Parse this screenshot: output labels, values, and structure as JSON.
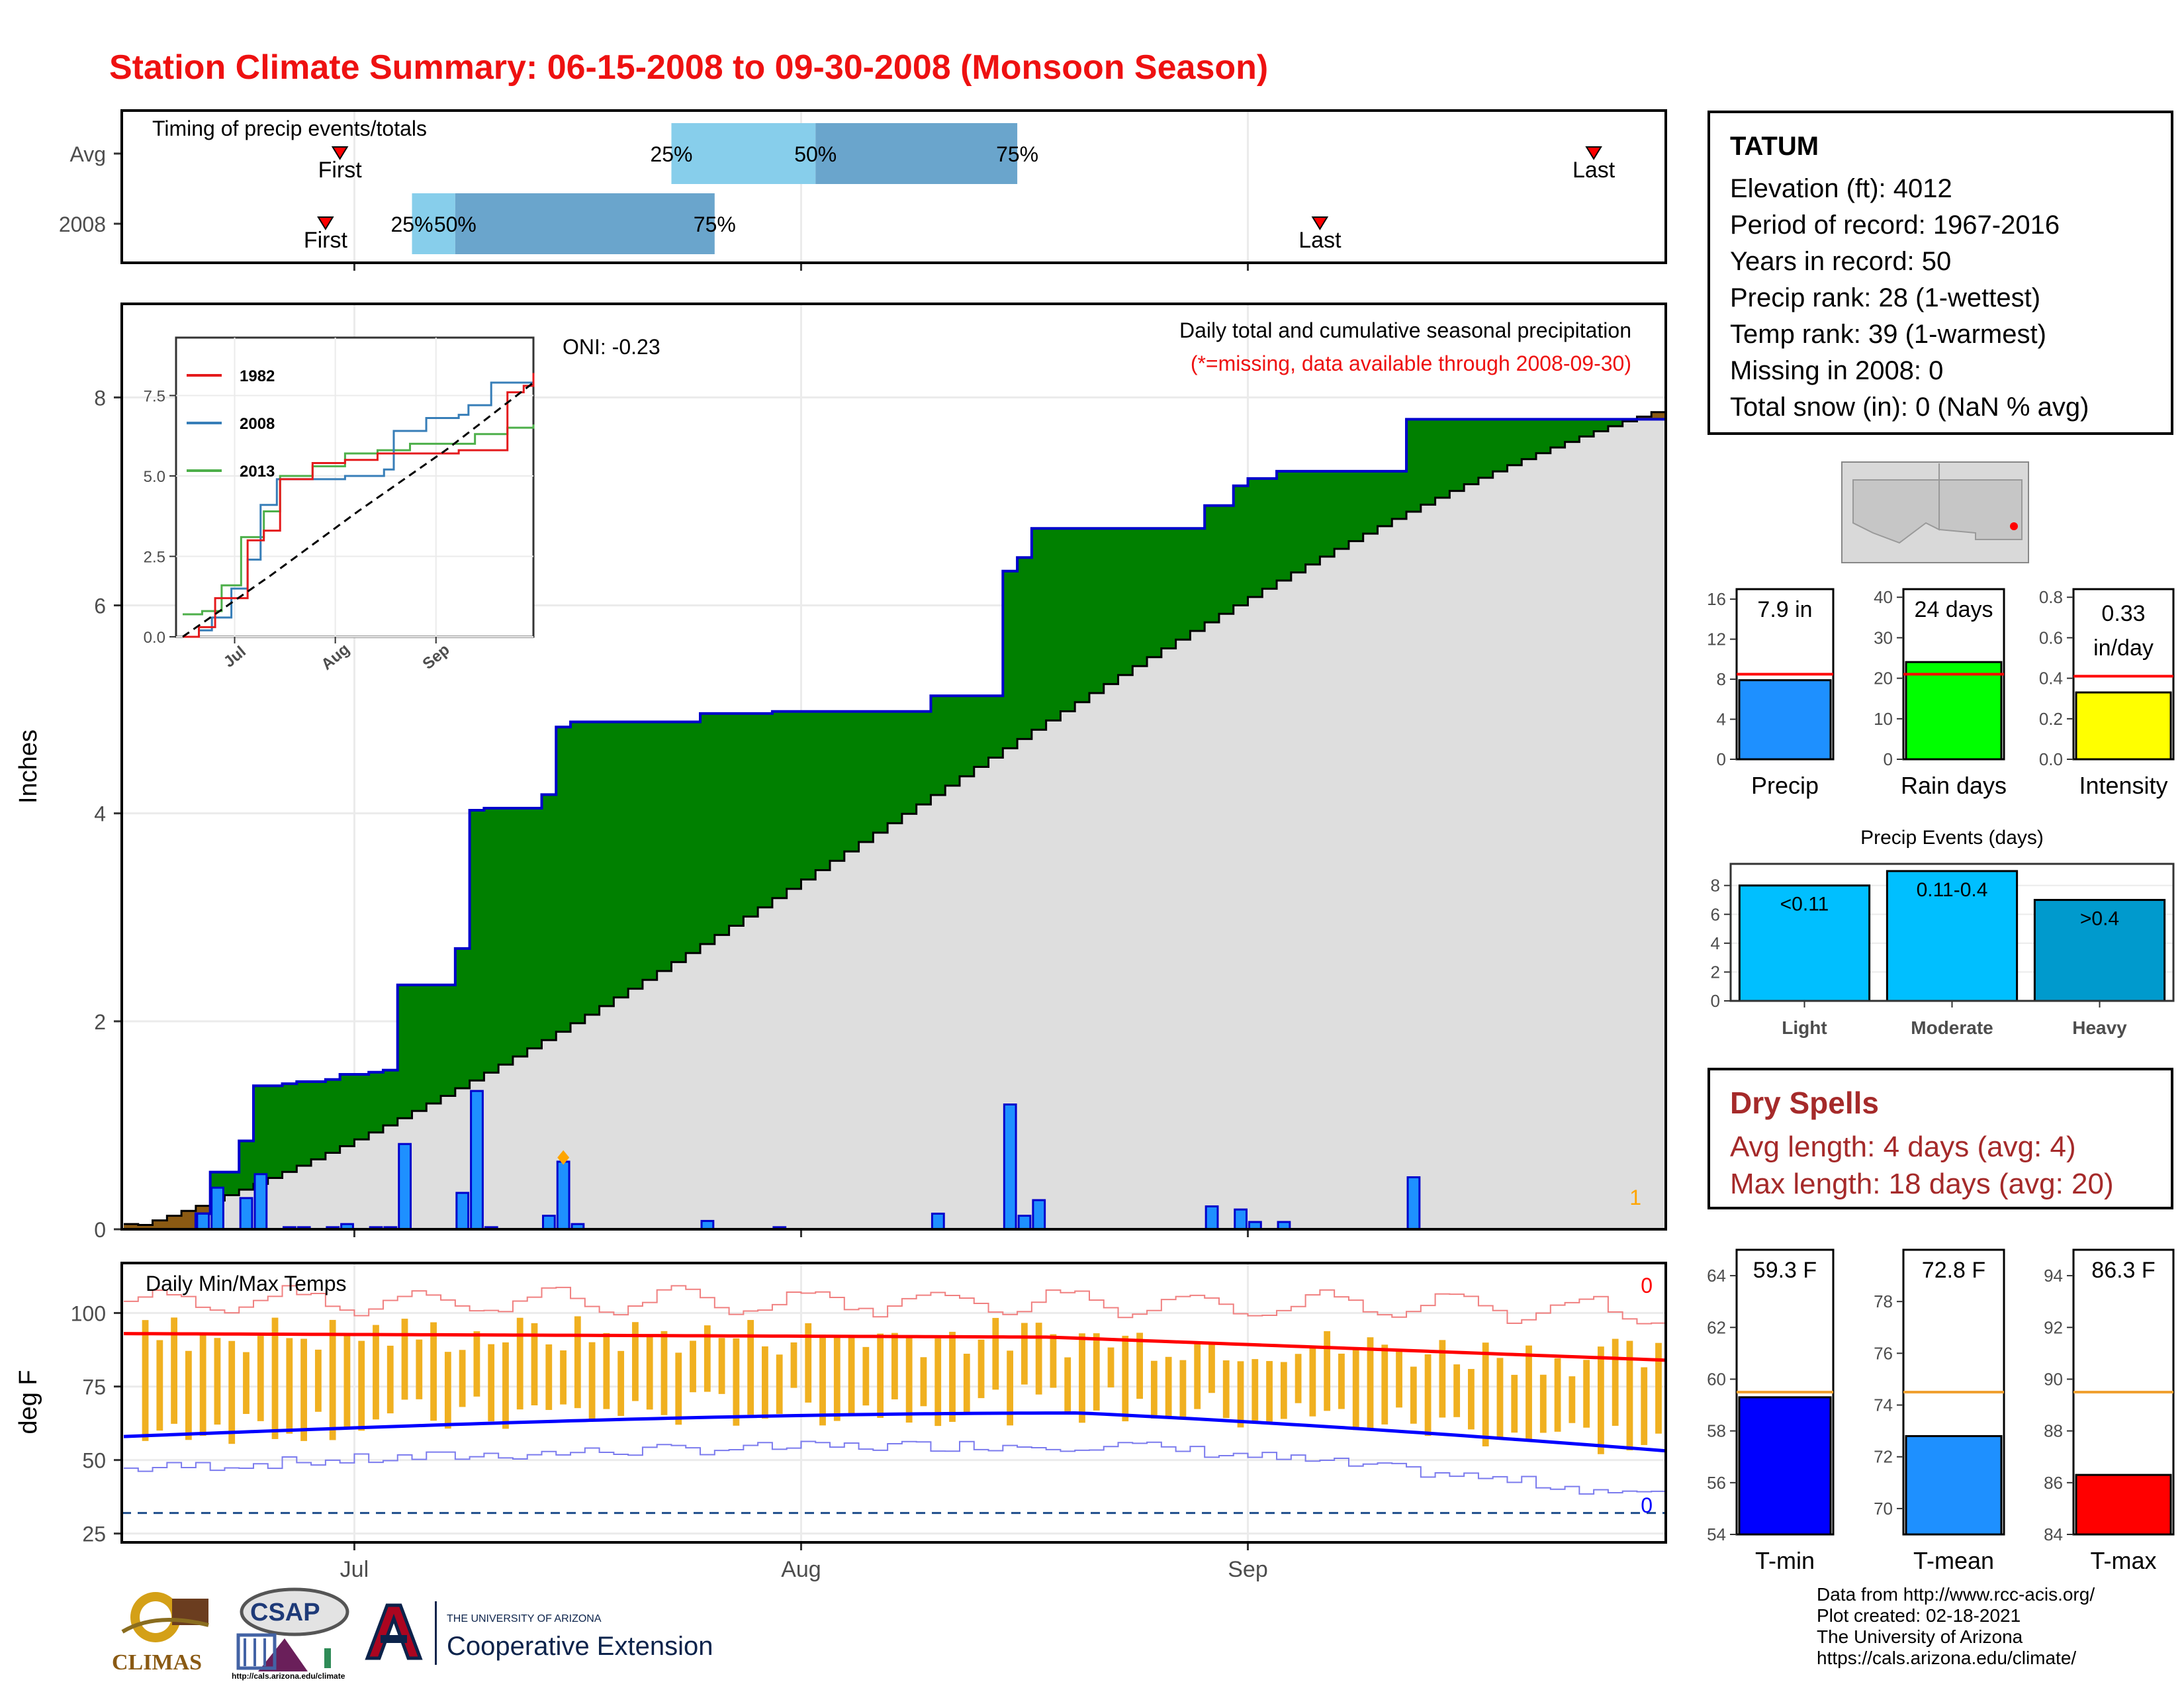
{
  "title": "Station Climate Summary: 06-15-2008 to 09-30-2008 (Monsoon Season)",
  "timing": {
    "title": "Timing of precip events/totals",
    "rows": [
      {
        "label": "Avg",
        "first": "2008-06-30",
        "q25": "2008-07-23",
        "q50": "2008-08-02",
        "q75": "2008-08-16",
        "last": "2008-09-25"
      },
      {
        "label": "2008",
        "first": "2008-06-29",
        "q25": "2008-07-05",
        "q50": "2008-07-08",
        "q75": "2008-07-26",
        "last": "2008-09-06"
      }
    ],
    "first_label": "First",
    "last_label": "Last",
    "q25_label": "25%",
    "q50_label": "50%",
    "q75_label": "75%"
  },
  "station": {
    "name": "TATUM",
    "lines": [
      "Elevation (ft): 4012",
      "Period of record: 1967-2016",
      "Years in record: 50",
      "Precip rank: 28 (1-wettest)",
      "Temp rank: 39 (1-warmest)",
      "Missing in 2008: 0",
      "Total snow (in): 0 (NaN % avg)"
    ]
  },
  "dry_spells": {
    "title": "Dry Spells",
    "lines": [
      "Avg length: 4 days (avg: 4)",
      "Max length: 18 days (avg: 20)"
    ]
  },
  "credits": [
    "Data from http://www.rcc-acis.org/",
    "Plot created: 02-18-2021",
    "The University of Arizona",
    "https://cals.arizona.edu/climate/"
  ],
  "logos": {
    "climas": "CLIMAS",
    "csap": "CSAP",
    "csap_url": "http://cals.arizona.edu/climate",
    "ua_line1": "THE UNIVERSITY OF ARIZONA",
    "ua_line2": "Cooperative Extension"
  },
  "colors": {
    "title": "#ee1111",
    "green_fill": "#008000",
    "brown_fill": "#8b5a13",
    "gray_fill": "#dedede",
    "precip_bar": "#1e90ff",
    "tmax": "#ff0000",
    "tmin": "#0000ff",
    "temp_bar": "#f0b020",
    "avg_line": "#ff0000",
    "light_q": "#87ceeb",
    "dark_q": "#6aa5cc"
  },
  "chart_data": [
    {
      "id": "precip",
      "type": "area",
      "title": "Daily total and cumulative seasonal precipitation",
      "subtitle": "(*=missing, data available through 2008-09-30)",
      "annotation": "ONI: -0.23",
      "corner_note": "1",
      "ylabel": "Inches",
      "ylim": [
        0,
        8.9
      ],
      "yticks": [
        0,
        2,
        4,
        6,
        8
      ],
      "xlim": [
        "2008-06-15",
        "2008-09-30"
      ],
      "xticks": [
        "Jul",
        "Aug",
        "Sep"
      ],
      "daily_precip": [
        {
          "date": "2008-06-20",
          "value": 0.15
        },
        {
          "date": "2008-06-21",
          "value": 0.4
        },
        {
          "date": "2008-06-23",
          "value": 0.3
        },
        {
          "date": "2008-06-24",
          "value": 0.53
        },
        {
          "date": "2008-06-26",
          "value": 0.02
        },
        {
          "date": "2008-06-27",
          "value": 0.02
        },
        {
          "date": "2008-06-29",
          "value": 0.02
        },
        {
          "date": "2008-06-30",
          "value": 0.05
        },
        {
          "date": "2008-07-02",
          "value": 0.02
        },
        {
          "date": "2008-07-03",
          "value": 0.02
        },
        {
          "date": "2008-07-04",
          "value": 0.82
        },
        {
          "date": "2008-07-08",
          "value": 0.35
        },
        {
          "date": "2008-07-09",
          "value": 1.33
        },
        {
          "date": "2008-07-10",
          "value": 0.02
        },
        {
          "date": "2008-07-14",
          "value": 0.13
        },
        {
          "date": "2008-07-15",
          "value": 0.65
        },
        {
          "date": "2008-07-16",
          "value": 0.05
        },
        {
          "date": "2008-07-25",
          "value": 0.08
        },
        {
          "date": "2008-07-30",
          "value": 0.02
        },
        {
          "date": "2008-08-10",
          "value": 0.15
        },
        {
          "date": "2008-08-15",
          "value": 1.2
        },
        {
          "date": "2008-08-16",
          "value": 0.13
        },
        {
          "date": "2008-08-17",
          "value": 0.28
        },
        {
          "date": "2008-08-29",
          "value": 0.22
        },
        {
          "date": "2008-08-31",
          "value": 0.19
        },
        {
          "date": "2008-09-01",
          "value": 0.07
        },
        {
          "date": "2008-09-03",
          "value": 0.07
        },
        {
          "date": "2008-09-12",
          "value": 0.5
        }
      ],
      "avg_cumulative_end": 7.9,
      "series": [
        {
          "name": "1982",
          "color": "#e41a1c"
        },
        {
          "name": "2008",
          "color": "#377eb8"
        },
        {
          "name": "2013",
          "color": "#4daf4a"
        }
      ],
      "inset": {
        "xticks": [
          "Jul",
          "Aug",
          "Sep"
        ],
        "yticks": [
          "0.0",
          "2.5",
          "5.0",
          "7.5"
        ],
        "ylim": [
          0,
          9.3
        ],
        "series_1982": [
          [
            0,
            0
          ],
          [
            5,
            0.3
          ],
          [
            10,
            1.2
          ],
          [
            20,
            3.0
          ],
          [
            25,
            3.3
          ],
          [
            30,
            4.9
          ],
          [
            40,
            5.4
          ],
          [
            50,
            5.5
          ],
          [
            60,
            5.7
          ],
          [
            70,
            5.7
          ],
          [
            85,
            5.8
          ],
          [
            95,
            5.8
          ],
          [
            100,
            7.6
          ],
          [
            105,
            7.8
          ],
          [
            108,
            8.2
          ]
        ],
        "series_2008": [
          [
            0,
            0
          ],
          [
            5,
            0.2
          ],
          [
            9,
            0.6
          ],
          [
            15,
            1.5
          ],
          [
            20,
            2.4
          ],
          [
            24,
            4.1
          ],
          [
            29,
            4.9
          ],
          [
            40,
            4.9
          ],
          [
            50,
            5.0
          ],
          [
            62,
            5.2
          ],
          [
            65,
            6.4
          ],
          [
            75,
            6.8
          ],
          [
            85,
            6.9
          ],
          [
            88,
            7.2
          ],
          [
            95,
            7.9
          ],
          [
            108,
            7.9
          ]
        ],
        "series_2013": [
          [
            0,
            0.7
          ],
          [
            6,
            0.8
          ],
          [
            12,
            1.6
          ],
          [
            18,
            3.1
          ],
          [
            25,
            3.9
          ],
          [
            30,
            5.0
          ],
          [
            40,
            5.3
          ],
          [
            50,
            5.7
          ],
          [
            60,
            5.8
          ],
          [
            70,
            6.0
          ],
          [
            80,
            6.0
          ],
          [
            90,
            6.3
          ],
          [
            100,
            6.5
          ],
          [
            108,
            6.6
          ]
        ],
        "series_avg": [
          [
            0,
            0
          ],
          [
            27,
            1.9
          ],
          [
            54,
            3.9
          ],
          [
            81,
            5.8
          ],
          [
            108,
            7.9
          ]
        ]
      }
    },
    {
      "id": "timing",
      "type": "bar",
      "categories": [
        "Avg",
        "2008"
      ]
    },
    {
      "id": "precip_total",
      "type": "bar",
      "categories": [
        "Precip"
      ],
      "values": [
        7.9
      ],
      "avg": 8.5,
      "label": "7.9 in",
      "ylim": [
        0,
        17
      ],
      "yticks": [
        0,
        4,
        8,
        12,
        16
      ],
      "color": "#1e90ff"
    },
    {
      "id": "rain_days",
      "type": "bar",
      "categories": [
        "Rain days"
      ],
      "values": [
        24
      ],
      "avg": 21,
      "label": "24 days",
      "ylim": [
        0,
        42
      ],
      "yticks": [
        0,
        10,
        20,
        30,
        40
      ],
      "color": "#00ff00"
    },
    {
      "id": "intensity",
      "type": "bar",
      "categories": [
        "Intensity"
      ],
      "values": [
        0.33
      ],
      "avg": 0.41,
      "label_line1": "0.33",
      "label_line2": "in/day",
      "ylim": [
        0,
        0.84
      ],
      "yticks": [
        "0.0",
        "0.2",
        "0.4",
        "0.6",
        "0.8"
      ],
      "color": "#ffff00"
    },
    {
      "id": "precip_events",
      "type": "bar",
      "title": "Precip Events (days)",
      "categories": [
        "Light",
        "Moderate",
        "Heavy"
      ],
      "values": [
        8,
        9,
        7
      ],
      "bar_labels": [
        "<0.11",
        "0.11-0.4",
        ">0.4"
      ],
      "ylim": [
        0,
        9.5
      ],
      "yticks": [
        0,
        2,
        4,
        6,
        8
      ],
      "colors": [
        "#00bfff",
        "#00bfff",
        "#009acd"
      ]
    },
    {
      "id": "temps",
      "type": "line",
      "title": "Daily Min/Max Temps",
      "ylabel": "deg F",
      "ylim": [
        22,
        117
      ],
      "yticks": [
        25,
        50,
        75,
        100
      ],
      "xticks": [
        "Jul",
        "Aug",
        "Sep"
      ],
      "max_days_note": "0",
      "min_days_note": "0",
      "freeze_line": 32
    },
    {
      "id": "tmin",
      "type": "bar",
      "categories": [
        "T-min"
      ],
      "values": [
        59.3
      ],
      "avg": 59.5,
      "label": "59.3 F",
      "ylim": [
        54,
        65
      ],
      "yticks": [
        54,
        56,
        58,
        60,
        62,
        64
      ],
      "color": "#0000ff"
    },
    {
      "id": "tmean",
      "type": "bar",
      "categories": [
        "T-mean"
      ],
      "values": [
        72.8
      ],
      "avg": 74.5,
      "label": "72.8 F",
      "ylim": [
        69,
        80
      ],
      "yticks": [
        70,
        72,
        74,
        76,
        78
      ],
      "color": "#1e90ff"
    },
    {
      "id": "tmax",
      "type": "bar",
      "categories": [
        "T-max"
      ],
      "values": [
        86.3
      ],
      "avg": 89.5,
      "label": "86.3 F",
      "ylim": [
        84,
        95
      ],
      "yticks": [
        84,
        86,
        88,
        90,
        92,
        94
      ],
      "color": "#ff0000"
    }
  ]
}
